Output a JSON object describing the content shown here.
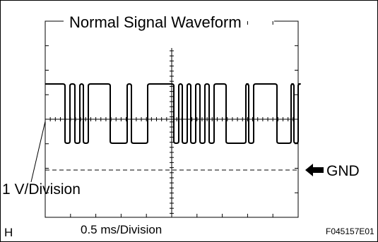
{
  "figure": {
    "title": "Normal Signal Waveform",
    "vertical_scale_label": "1 V/Division",
    "horizontal_scale_label": "0.5 ms/Division",
    "ground_marker_label": "GND",
    "corner_letter": "H",
    "figure_id": "F045157E01"
  },
  "icons": {
    "ground_marker": "left-arrow-icon"
  },
  "colors": {
    "trace": "#000000",
    "grid": "#000000",
    "background": "#ffffff"
  }
}
